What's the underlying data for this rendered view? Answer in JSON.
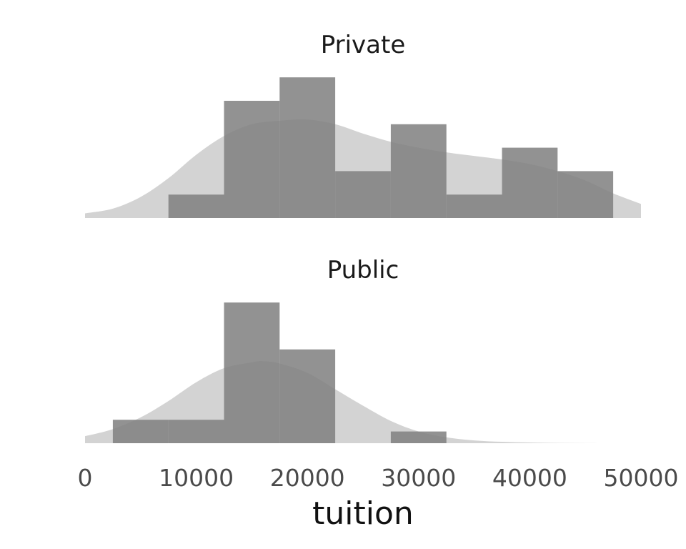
{
  "chart_data": {
    "type": "bar",
    "xlabel": "tuition",
    "xlim": [
      0,
      50000
    ],
    "x_ticks": [
      0,
      10000,
      20000,
      30000,
      40000,
      50000
    ],
    "x_tick_labels": [
      "0",
      "10000",
      "20000",
      "30000",
      "40000",
      "50000"
    ],
    "bin_width": 5000,
    "grid": false,
    "bar_color": "#7f7f7f",
    "density_color": "#d3d3d3",
    "facets": [
      {
        "name": "Private",
        "bins": [
          {
            "x0": 7500,
            "x1": 12500,
            "count": 1
          },
          {
            "x0": 12500,
            "x1": 17500,
            "count": 5
          },
          {
            "x0": 17500,
            "x1": 22500,
            "count": 6
          },
          {
            "x0": 22500,
            "x1": 27500,
            "count": 2
          },
          {
            "x0": 27500,
            "x1": 32500,
            "count": 4
          },
          {
            "x0": 32500,
            "x1": 37500,
            "count": 1
          },
          {
            "x0": 37500,
            "x1": 42500,
            "count": 3
          },
          {
            "x0": 42500,
            "x1": 47500,
            "count": 2
          }
        ],
        "density": {
          "x": [
            0,
            2500,
            5000,
            7500,
            10000,
            12500,
            15000,
            17500,
            20000,
            22500,
            25000,
            27500,
            30000,
            32500,
            35000,
            37500,
            40000,
            42500,
            45000,
            47500,
            50000
          ],
          "y": [
            0.2,
            0.4,
            0.9,
            1.7,
            2.7,
            3.5,
            4.0,
            4.15,
            4.2,
            4.0,
            3.6,
            3.25,
            3.0,
            2.8,
            2.65,
            2.5,
            2.3,
            2.0,
            1.6,
            1.05,
            0.6
          ]
        }
      },
      {
        "name": "Public",
        "bins": [
          {
            "x0": 2500,
            "x1": 7500,
            "count": 1
          },
          {
            "x0": 7500,
            "x1": 12500,
            "count": 1
          },
          {
            "x0": 12500,
            "x1": 17500,
            "count": 6
          },
          {
            "x0": 17500,
            "x1": 22500,
            "count": 4
          },
          {
            "x0": 27500,
            "x1": 32500,
            "count": 0.5
          }
        ],
        "density": {
          "x": [
            0,
            2500,
            5000,
            7500,
            10000,
            12500,
            15000,
            16000,
            17500,
            20000,
            22500,
            25000,
            27500,
            30000,
            32500,
            35000,
            37500,
            40000,
            42500,
            45000,
            47500
          ],
          "y": [
            0.3,
            0.6,
            1.1,
            1.8,
            2.6,
            3.2,
            3.45,
            3.5,
            3.4,
            3.0,
            2.3,
            1.6,
            0.95,
            0.5,
            0.25,
            0.12,
            0.06,
            0.03,
            0.01,
            0.005,
            0.0
          ]
        }
      }
    ]
  }
}
